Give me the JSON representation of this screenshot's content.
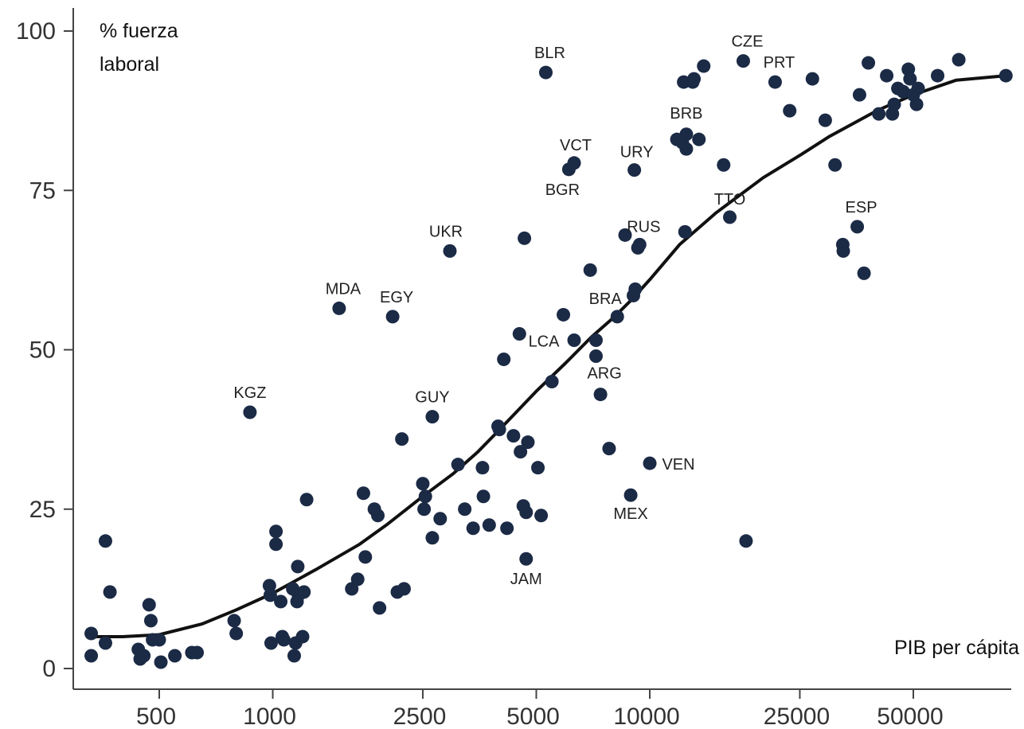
{
  "chart_data": {
    "type": "scatter",
    "title": "",
    "xlabel": "PIB per cápita",
    "ylabel": "% fuerza laboral",
    "x_scale": "log",
    "xlim": [
      300,
      90000
    ],
    "ylim": [
      0,
      100
    ],
    "x_ticks": [
      {
        "value": 500,
        "label": "500"
      },
      {
        "value": 1000,
        "label": "1000"
      },
      {
        "value": 2500,
        "label": "2500"
      },
      {
        "value": 5000,
        "label": "5000"
      },
      {
        "value": 10000,
        "label": "10000"
      },
      {
        "value": 25000,
        "label": "25000"
      },
      {
        "value": 50000,
        "label": "50000"
      }
    ],
    "y_ticks": [
      {
        "value": 0,
        "label": "0"
      },
      {
        "value": 25,
        "label": "25"
      },
      {
        "value": 50,
        "label": "50"
      },
      {
        "value": 75,
        "label": "75"
      },
      {
        "value": 100,
        "label": "100"
      }
    ],
    "grid": false,
    "legend": "none",
    "point_color": "#1b2a45",
    "line_color": "#111111",
    "labeled_points": [
      {
        "code": "BLR",
        "x": 5300,
        "y": 93.5,
        "label_dx": 5,
        "label_dy": -18
      },
      {
        "code": "CZE",
        "x": 17700,
        "y": 95.3,
        "label_dx": 5,
        "label_dy": -18
      },
      {
        "code": "PRT",
        "x": 21500,
        "y": 92.0,
        "label_dx": 5,
        "label_dy": -18
      },
      {
        "code": "BRB",
        "x": 12500,
        "y": 83.8,
        "label_dx": 0,
        "label_dy": -20
      },
      {
        "code": "VCT",
        "x": 6300,
        "y": 79.3,
        "label_dx": 2,
        "label_dy": -16
      },
      {
        "code": "BGR",
        "x": 6100,
        "y": 78.3,
        "label_dx": -8,
        "label_dy": 32
      },
      {
        "code": "URY",
        "x": 9100,
        "y": 78.2,
        "label_dx": 3,
        "label_dy": -16
      },
      {
        "code": "TTO",
        "x": 16300,
        "y": 70.8,
        "label_dx": 0,
        "label_dy": -16
      },
      {
        "code": "ESP",
        "x": 35500,
        "y": 69.3,
        "label_dx": 5,
        "label_dy": -18
      },
      {
        "code": "RUS",
        "x": 9400,
        "y": 66.5,
        "label_dx": 5,
        "label_dy": -16
      },
      {
        "code": "UKR",
        "x": 2950,
        "y": 65.5,
        "label_dx": -5,
        "label_dy": -18
      },
      {
        "code": "MDA",
        "x": 1500,
        "y": 56.5,
        "label_dx": 5,
        "label_dy": -18
      },
      {
        "code": "EGY",
        "x": 2080,
        "y": 55.2,
        "label_dx": 5,
        "label_dy": -18
      },
      {
        "code": "BRA",
        "x": 8200,
        "y": 55.2,
        "label_dx": -15,
        "label_dy": -16
      },
      {
        "code": "LCA",
        "x": 6300,
        "y": 51.5,
        "label_dx": -38,
        "label_dy": 8
      },
      {
        "code": "ARG",
        "x": 7400,
        "y": 43.0,
        "label_dx": 5,
        "label_dy": -20
      },
      {
        "code": "KGZ",
        "x": 870,
        "y": 40.2,
        "label_dx": 0,
        "label_dy": -18
      },
      {
        "code": "GUY",
        "x": 2650,
        "y": 39.5,
        "label_dx": 0,
        "label_dy": -18
      },
      {
        "code": "VEN",
        "x": 10000,
        "y": 32.2,
        "label_dx": 36,
        "label_dy": 8
      },
      {
        "code": "MEX",
        "x": 8900,
        "y": 27.2,
        "label_dx": 0,
        "label_dy": 30
      },
      {
        "code": "JAM",
        "x": 4700,
        "y": 17.2,
        "label_dx": 0,
        "label_dy": 32
      }
    ],
    "points": [
      {
        "x": 330,
        "y": 5.5
      },
      {
        "x": 330,
        "y": 2.0
      },
      {
        "x": 360,
        "y": 20.0
      },
      {
        "x": 360,
        "y": 4.0
      },
      {
        "x": 370,
        "y": 12.0
      },
      {
        "x": 440,
        "y": 3.0
      },
      {
        "x": 445,
        "y": 1.5
      },
      {
        "x": 455,
        "y": 2.0
      },
      {
        "x": 470,
        "y": 10.0
      },
      {
        "x": 475,
        "y": 7.5
      },
      {
        "x": 480,
        "y": 4.5
      },
      {
        "x": 500,
        "y": 4.5
      },
      {
        "x": 505,
        "y": 1.0
      },
      {
        "x": 550,
        "y": 2.0
      },
      {
        "x": 610,
        "y": 2.5
      },
      {
        "x": 630,
        "y": 2.5
      },
      {
        "x": 790,
        "y": 7.5
      },
      {
        "x": 800,
        "y": 5.5
      },
      {
        "x": 980,
        "y": 13.0
      },
      {
        "x": 985,
        "y": 11.5
      },
      {
        "x": 990,
        "y": 4.0
      },
      {
        "x": 1020,
        "y": 21.5
      },
      {
        "x": 1020,
        "y": 19.5
      },
      {
        "x": 1050,
        "y": 10.5
      },
      {
        "x": 1060,
        "y": 5.0
      },
      {
        "x": 1070,
        "y": 4.5
      },
      {
        "x": 1130,
        "y": 12.5
      },
      {
        "x": 1140,
        "y": 2.0
      },
      {
        "x": 1150,
        "y": 4.0
      },
      {
        "x": 1160,
        "y": 10.5
      },
      {
        "x": 1165,
        "y": 16.0
      },
      {
        "x": 1170,
        "y": 11.5
      },
      {
        "x": 1200,
        "y": 5.0
      },
      {
        "x": 1210,
        "y": 12.0
      },
      {
        "x": 1230,
        "y": 26.5
      },
      {
        "x": 1620,
        "y": 12.5
      },
      {
        "x": 1680,
        "y": 14.0
      },
      {
        "x": 1740,
        "y": 27.5
      },
      {
        "x": 1760,
        "y": 17.5
      },
      {
        "x": 1860,
        "y": 25.0
      },
      {
        "x": 1900,
        "y": 24.0
      },
      {
        "x": 1920,
        "y": 9.5
      },
      {
        "x": 2140,
        "y": 12.0
      },
      {
        "x": 2200,
        "y": 36.0
      },
      {
        "x": 2230,
        "y": 12.5
      },
      {
        "x": 2500,
        "y": 29.0
      },
      {
        "x": 2520,
        "y": 25.0
      },
      {
        "x": 2540,
        "y": 27.0
      },
      {
        "x": 2650,
        "y": 20.5
      },
      {
        "x": 2780,
        "y": 23.5
      },
      {
        "x": 3100,
        "y": 32.0
      },
      {
        "x": 3230,
        "y": 25.0
      },
      {
        "x": 3400,
        "y": 22.0
      },
      {
        "x": 3600,
        "y": 31.5
      },
      {
        "x": 3620,
        "y": 27.0
      },
      {
        "x": 3750,
        "y": 22.5
      },
      {
        "x": 3960,
        "y": 38.0
      },
      {
        "x": 3990,
        "y": 37.5
      },
      {
        "x": 4100,
        "y": 48.5
      },
      {
        "x": 4180,
        "y": 22.0
      },
      {
        "x": 4350,
        "y": 36.5
      },
      {
        "x": 4510,
        "y": 52.5
      },
      {
        "x": 4540,
        "y": 34.0
      },
      {
        "x": 4620,
        "y": 25.5
      },
      {
        "x": 4650,
        "y": 67.5
      },
      {
        "x": 4700,
        "y": 24.5
      },
      {
        "x": 4750,
        "y": 35.5
      },
      {
        "x": 5050,
        "y": 31.5
      },
      {
        "x": 5150,
        "y": 24.0
      },
      {
        "x": 5500,
        "y": 45.0
      },
      {
        "x": 5900,
        "y": 55.5
      },
      {
        "x": 6950,
        "y": 62.5
      },
      {
        "x": 7200,
        "y": 51.5
      },
      {
        "x": 7200,
        "y": 49.0
      },
      {
        "x": 7800,
        "y": 34.5
      },
      {
        "x": 8600,
        "y": 68.0
      },
      {
        "x": 9050,
        "y": 58.5
      },
      {
        "x": 9150,
        "y": 59.5
      },
      {
        "x": 9300,
        "y": 66.0
      },
      {
        "x": 11800,
        "y": 83.0
      },
      {
        "x": 12200,
        "y": 82.5
      },
      {
        "x": 12300,
        "y": 92.0
      },
      {
        "x": 12400,
        "y": 68.5
      },
      {
        "x": 12500,
        "y": 81.5
      },
      {
        "x": 13000,
        "y": 92.0
      },
      {
        "x": 13100,
        "y": 92.5
      },
      {
        "x": 13500,
        "y": 83.0
      },
      {
        "x": 13900,
        "y": 94.5
      },
      {
        "x": 15700,
        "y": 79.0
      },
      {
        "x": 18000,
        "y": 20.0
      },
      {
        "x": 23500,
        "y": 87.5
      },
      {
        "x": 27000,
        "y": 92.5
      },
      {
        "x": 29200,
        "y": 86.0
      },
      {
        "x": 31000,
        "y": 79.0
      },
      {
        "x": 32500,
        "y": 66.5
      },
      {
        "x": 32600,
        "y": 65.5
      },
      {
        "x": 36000,
        "y": 90.0
      },
      {
        "x": 37000,
        "y": 62.0
      },
      {
        "x": 38000,
        "y": 95.0
      },
      {
        "x": 40500,
        "y": 87.0
      },
      {
        "x": 42500,
        "y": 93.0
      },
      {
        "x": 44000,
        "y": 87.0
      },
      {
        "x": 44500,
        "y": 88.5
      },
      {
        "x": 45500,
        "y": 91.0
      },
      {
        "x": 47000,
        "y": 90.5
      },
      {
        "x": 48500,
        "y": 94.0
      },
      {
        "x": 49000,
        "y": 92.5
      },
      {
        "x": 50000,
        "y": 90.0
      },
      {
        "x": 51000,
        "y": 88.5
      },
      {
        "x": 51500,
        "y": 91.0
      },
      {
        "x": 58000,
        "y": 93.0
      },
      {
        "x": 66000,
        "y": 95.5
      },
      {
        "x": 88000,
        "y": 93.0
      }
    ],
    "trend_line": [
      {
        "x": 330,
        "y": 5.0
      },
      {
        "x": 400,
        "y": 5.0
      },
      {
        "x": 500,
        "y": 5.3
      },
      {
        "x": 650,
        "y": 7.0
      },
      {
        "x": 800,
        "y": 9.2
      },
      {
        "x": 1000,
        "y": 11.8
      },
      {
        "x": 1300,
        "y": 15.5
      },
      {
        "x": 1700,
        "y": 19.5
      },
      {
        "x": 2000,
        "y": 22.5
      },
      {
        "x": 2500,
        "y": 27.0
      },
      {
        "x": 3000,
        "y": 30.5
      },
      {
        "x": 3500,
        "y": 34.0
      },
      {
        "x": 4000,
        "y": 37.5
      },
      {
        "x": 5000,
        "y": 43.5
      },
      {
        "x": 6000,
        "y": 48.0
      },
      {
        "x": 7000,
        "y": 52.0
      },
      {
        "x": 8000,
        "y": 55.0
      },
      {
        "x": 9000,
        "y": 58.0
      },
      {
        "x": 10000,
        "y": 61.0
      },
      {
        "x": 12000,
        "y": 66.5
      },
      {
        "x": 15000,
        "y": 71.5
      },
      {
        "x": 20000,
        "y": 77.0
      },
      {
        "x": 25000,
        "y": 80.5
      },
      {
        "x": 30000,
        "y": 83.5
      },
      {
        "x": 40000,
        "y": 87.5
      },
      {
        "x": 50000,
        "y": 90.0
      },
      {
        "x": 65000,
        "y": 92.3
      },
      {
        "x": 88000,
        "y": 93.0
      }
    ]
  }
}
